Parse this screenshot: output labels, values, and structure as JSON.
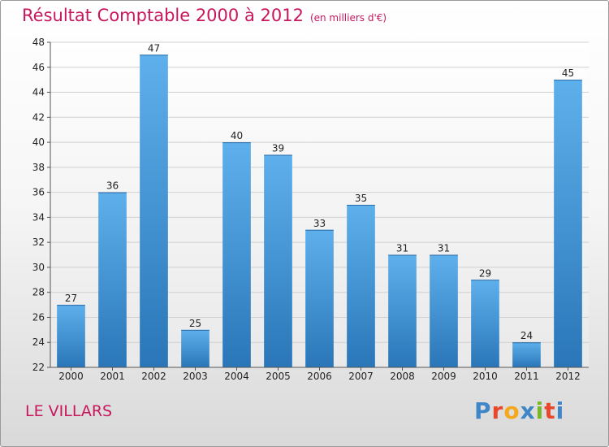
{
  "title": "Résultat Comptable 2000 à 2012",
  "subtitle": "(en milliers d'€)",
  "commune": "LE VILLARS",
  "logo": {
    "text": "Proxiti",
    "letter_colors": [
      "#3f86c8",
      "#e8472c",
      "#f4a81d",
      "#3f86c8",
      "#76b82a",
      "#e8472c",
      "#3f86c8"
    ]
  },
  "colors": {
    "title": "#c8175d",
    "bar_light": "#5eb0ec",
    "bar_dark": "#2a76b8"
  },
  "chart_data": {
    "type": "bar",
    "title": "Résultat Comptable 2000 à 2012",
    "subtitle": "(en milliers d'€)",
    "xlabel": "",
    "ylabel": "",
    "categories": [
      "2000",
      "2001",
      "2002",
      "2003",
      "2004",
      "2005",
      "2006",
      "2007",
      "2008",
      "2009",
      "2010",
      "2011",
      "2012"
    ],
    "values": [
      27,
      36,
      47,
      25,
      40,
      39,
      33,
      35,
      31,
      31,
      29,
      24,
      45
    ],
    "ylim": [
      22,
      48
    ],
    "yticks": [
      22,
      24,
      26,
      28,
      30,
      32,
      34,
      36,
      38,
      40,
      42,
      44,
      46,
      48
    ],
    "grid": true,
    "legend": "none"
  }
}
